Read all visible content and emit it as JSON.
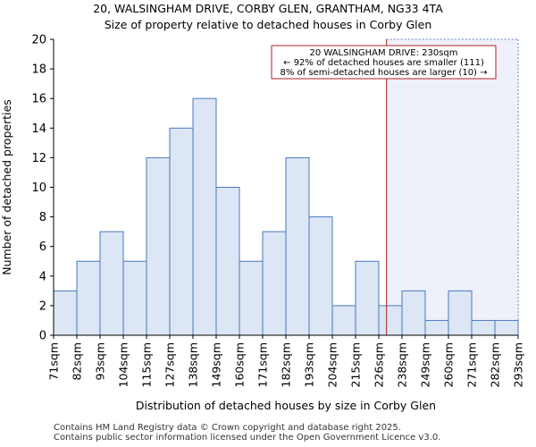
{
  "title_line1": "20, WALSINGHAM DRIVE, CORBY GLEN, GRANTHAM, NG33 4TA",
  "title_line2": "Size of property relative to detached houses in Corby Glen",
  "footer_line1": "Contains HM Land Registry data © Crown copyright and database right 2025.",
  "footer_line2": "Contains public sector information licensed under the Open Government Licence v3.0.",
  "chart_data": {
    "type": "bar",
    "xlabel": "Distribution of detached houses by size in Corby Glen",
    "ylabel": "Number of detached properties",
    "bin_edges": [
      71,
      82,
      93,
      104,
      115,
      127,
      138,
      149,
      160,
      171,
      182,
      193,
      204,
      215,
      226,
      238,
      249,
      260,
      271,
      282,
      293
    ],
    "tick_labels": [
      "71sqm",
      "82sqm",
      "93sqm",
      "104sqm",
      "115sqm",
      "127sqm",
      "138sqm",
      "149sqm",
      "160sqm",
      "171sqm",
      "182sqm",
      "193sqm",
      "204sqm",
      "215sqm",
      "226sqm",
      "238sqm",
      "249sqm",
      "260sqm",
      "271sqm",
      "282sqm",
      "293sqm"
    ],
    "values": [
      3,
      5,
      7,
      5,
      12,
      14,
      16,
      10,
      5,
      7,
      12,
      8,
      2,
      5,
      2,
      3,
      1,
      3,
      1,
      1
    ],
    "ylim": [
      0,
      20
    ],
    "yticks": [
      0,
      2,
      4,
      6,
      8,
      10,
      12,
      14,
      16,
      18,
      20
    ],
    "grid": false,
    "marker": {
      "value": 230,
      "label_lines": [
        "20 WALSINGHAM DRIVE: 230sqm",
        "← 92% of detached houses are smaller (111)",
        "8% of semi-detached houses are larger (10) →"
      ]
    },
    "colors": {
      "bar_fill": "#dce6f5",
      "bar_stroke": "#4a78c0",
      "shade_fill": "#eef1fa",
      "marker": "#b22222",
      "axis": "#000000"
    }
  }
}
